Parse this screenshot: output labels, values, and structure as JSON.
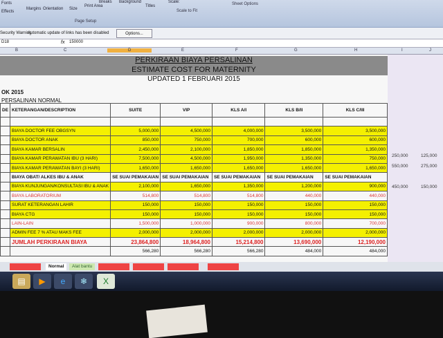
{
  "ribbon": {
    "items": [
      "Fonts",
      "Effects",
      "Margins",
      "Orientation",
      "Size",
      "Print Area",
      "Breaks",
      "Background",
      "Titles",
      "Scale:"
    ],
    "groups": [
      "Page Setup",
      "Scale to Fit",
      "Sheet Options"
    ]
  },
  "warning": {
    "label": "Security Warning",
    "message": "Automatic update of links has been disabled",
    "options_button": "Options..."
  },
  "formula_bar": {
    "name_box": "D18",
    "fx": "fx",
    "value": "150000"
  },
  "columns": [
    "B",
    "C",
    "D",
    "E",
    "F",
    "G",
    "H",
    "I",
    "J"
  ],
  "sheet": {
    "title": "PERKIRAAN BIAYA PERSALINAN",
    "subtitle": "ESTIMATE COST FOR MATERNITY",
    "updated": "UPDATED 1 FEBRUARI 2015",
    "year_label": "OK 2015",
    "section": "PERSALINAN NORMAL",
    "headers": [
      "DE",
      "KETERANGAN/DESCRIPTION",
      "SUITE",
      "VIP",
      "KLS A/I",
      "KLS B/II",
      "KLS C/III"
    ],
    "rows": [
      {
        "desc": "BIAYA DOCTOR FEE OBGSYN",
        "v": [
          "5,000,000",
          "4,500,000",
          "4,000,000",
          "3,500,000",
          "3,500,000"
        ],
        "style": "y"
      },
      {
        "desc": "BIAYA DOCTOR ANAK",
        "v": [
          "850,000",
          "750,000",
          "700,000",
          "600,000",
          "600,000"
        ],
        "style": "y"
      },
      {
        "desc": "BIAYA KAMAR BERSALIN",
        "v": [
          "2,450,000",
          "2,100,000",
          "1,850,000",
          "1,850,000",
          "1,350,000"
        ],
        "style": "y"
      },
      {
        "desc": "BIAYA KAMAR PERAWATAN IBU (3 HARI)",
        "v": [
          "7,500,000",
          "4,500,000",
          "1,950,000",
          "1,350,000",
          "750,000"
        ],
        "style": "y"
      },
      {
        "desc": "BIAYA KAMAR PERAWATAN BAYI (3 HARI)",
        "v": [
          "1,650,000",
          "1,650,000",
          "1,650,000",
          "1,650,000",
          "1,650,000"
        ],
        "style": "y"
      },
      {
        "desc": "BIAYA OBAT/ ALKES IBU & ANAK",
        "v": [
          "SE SUAI PEMAKAIAN",
          "SE SUAI PEMAKAIAN",
          "SE SUAI PEMAKAIAN",
          "SE SUAI PEMAKAIAN",
          "SE SUAI PEMAKAIAN"
        ],
        "style": "s"
      },
      {
        "desc": "BIAYA KUNJUNGAN/KONSULTASI IBU & ANAK",
        "v": [
          "2,100,000",
          "1,650,000",
          "1,350,000",
          "1,200,000",
          "900,000"
        ],
        "style": "y"
      },
      {
        "desc": "BIAYA LABORATORIUM",
        "v": [
          "514,800",
          "514,800",
          "514,800",
          "440,000",
          "440,000"
        ],
        "style": "red"
      },
      {
        "desc": "SURAT KETERANGAN LAHIR",
        "v": [
          "150,000",
          "150,000",
          "150,000",
          "150,000",
          "150,000"
        ],
        "style": "y"
      },
      {
        "desc": "BIAYA CTG",
        "v": [
          "150,000",
          "150,000",
          "150,000",
          "150,000",
          "150,000"
        ],
        "style": "y"
      },
      {
        "desc": "LAIN-LAIN",
        "v": [
          "1,500,000",
          "1,000,000",
          "900,000",
          "800,000",
          "700,000"
        ],
        "style": "red"
      },
      {
        "desc": "ADMIN FEE 7 % ATAU MAKS FEE",
        "v": [
          "2,000,000",
          "2,000,000",
          "2,000,000",
          "2,000,000",
          "2,000,000"
        ],
        "style": "y"
      },
      {
        "desc": "JUMLAH PERKIRAAN BIAYA",
        "v": [
          "23,864,800",
          "18,964,800",
          "15,214,800",
          "13,690,000",
          "12,190,000"
        ],
        "style": "tot"
      },
      {
        "desc": "",
        "v": [
          "566,280",
          "566,280",
          "566,280",
          "484,000",
          "484,000"
        ],
        "style": "plain"
      }
    ],
    "extra": [
      [
        "250,000",
        "125,000"
      ],
      [
        "550,000",
        "275,000"
      ],
      [
        "450,000",
        "150,000"
      ]
    ]
  },
  "tabs": [
    "Normal",
    "Alat bantu"
  ],
  "colors": {
    "highlight": "#f4f000",
    "red_text": "#d33",
    "tab_red": "#e44"
  },
  "taskbar": {
    "icons": [
      "folder-icon",
      "media-player-icon",
      "internet-explorer-icon",
      "snowflake-icon",
      "excel-icon"
    ]
  }
}
